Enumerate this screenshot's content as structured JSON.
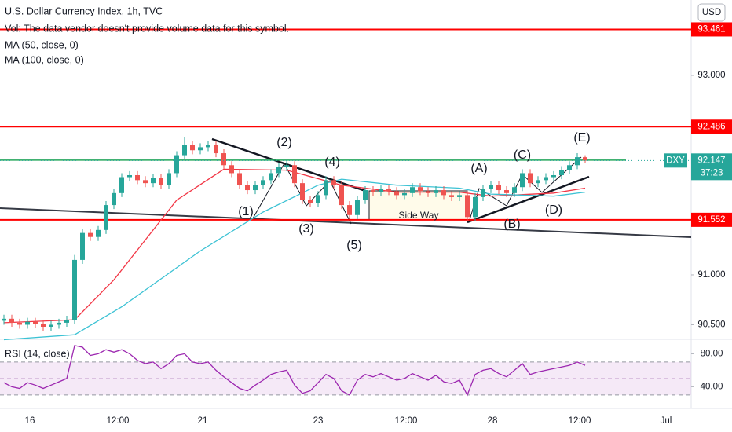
{
  "chart_data": {
    "type": "candlestick",
    "title": "U.S. Dollar Currency Index, 1h, TVC",
    "volume_note": "Vol: The data vendor doesn't provide volume data for this symbol.",
    "currency": "USD",
    "symbol": "DXY",
    "countdown": "37:23",
    "last_price": 92.147,
    "up_color": "#26a69a",
    "down_color": "#ef5350",
    "open": [
      90.54,
      90.56,
      90.52,
      90.5,
      90.53,
      90.51,
      90.48,
      90.5,
      90.52,
      90.55,
      91.15,
      91.42,
      91.38,
      91.45,
      91.7,
      91.82,
      91.98,
      92.0,
      91.95,
      91.92,
      91.97,
      91.9,
      92.02,
      92.2,
      92.3,
      92.25,
      92.28,
      92.3,
      92.22,
      92.1,
      92.02,
      91.9,
      91.85,
      91.9,
      91.95,
      92.02,
      92.08,
      92.1,
      91.92,
      91.75,
      91.72,
      91.8,
      91.95,
      91.9,
      91.7,
      91.6,
      91.75,
      91.85,
      91.83,
      91.86,
      91.84,
      91.8,
      91.82,
      91.88,
      91.84,
      91.82,
      91.85,
      91.8,
      91.78,
      91.8,
      91.58,
      91.78,
      91.86,
      91.9,
      91.85,
      91.82,
      91.88,
      92.02,
      91.92,
      91.95,
      91.98,
      92.0,
      92.05,
      92.1,
      92.18
    ],
    "high": [
      90.6,
      90.6,
      90.56,
      90.57,
      90.57,
      90.55,
      90.54,
      90.56,
      90.59,
      91.2,
      91.46,
      91.46,
      91.49,
      91.74,
      91.86,
      92.02,
      92.04,
      92.04,
      91.99,
      92.01,
      92.01,
      92.06,
      92.24,
      92.38,
      92.34,
      92.32,
      92.34,
      92.34,
      92.26,
      92.14,
      92.06,
      91.94,
      91.94,
      91.99,
      92.06,
      92.12,
      92.14,
      92.14,
      91.96,
      91.79,
      91.84,
      91.99,
      91.99,
      91.94,
      91.74,
      91.79,
      91.89,
      91.89,
      91.9,
      91.9,
      91.88,
      91.86,
      91.92,
      91.92,
      91.88,
      91.89,
      91.89,
      91.84,
      91.84,
      91.84,
      91.82,
      91.9,
      91.94,
      91.94,
      91.89,
      91.92,
      92.06,
      92.06,
      91.99,
      92.02,
      92.04,
      92.09,
      92.14,
      92.22,
      92.2
    ],
    "low": [
      90.5,
      90.48,
      90.46,
      90.46,
      90.47,
      90.44,
      90.44,
      90.46,
      90.48,
      90.51,
      91.11,
      91.34,
      91.34,
      91.41,
      91.66,
      91.78,
      91.94,
      91.91,
      91.88,
      91.88,
      91.86,
      91.86,
      91.98,
      92.16,
      92.21,
      92.21,
      92.24,
      92.18,
      92.06,
      91.98,
      91.86,
      91.81,
      91.81,
      91.86,
      91.91,
      91.98,
      92.04,
      91.88,
      91.71,
      91.68,
      91.68,
      91.76,
      91.86,
      91.66,
      91.56,
      91.56,
      91.71,
      91.79,
      91.79,
      91.8,
      91.76,
      91.76,
      91.78,
      91.8,
      91.78,
      91.78,
      91.76,
      91.74,
      91.74,
      91.54,
      91.54,
      91.74,
      91.82,
      91.81,
      91.78,
      91.78,
      91.84,
      91.88,
      91.88,
      91.91,
      91.94,
      91.96,
      92.01,
      92.06,
      92.12
    ],
    "close": [
      90.56,
      90.52,
      90.5,
      90.53,
      90.51,
      90.48,
      90.5,
      90.52,
      90.55,
      91.15,
      91.42,
      91.38,
      91.45,
      91.7,
      91.82,
      91.98,
      92.0,
      91.95,
      91.92,
      91.97,
      91.9,
      92.02,
      92.2,
      92.3,
      92.25,
      92.28,
      92.3,
      92.22,
      92.1,
      92.02,
      91.9,
      91.85,
      91.9,
      91.95,
      92.02,
      92.08,
      92.1,
      91.92,
      91.75,
      91.72,
      91.8,
      91.95,
      91.9,
      91.7,
      91.6,
      91.75,
      91.85,
      91.83,
      91.86,
      91.84,
      91.8,
      91.82,
      91.88,
      91.84,
      91.82,
      91.85,
      91.8,
      91.78,
      91.8,
      91.58,
      91.78,
      91.86,
      91.9,
      91.85,
      91.82,
      91.88,
      92.02,
      91.92,
      91.95,
      91.98,
      92.0,
      92.05,
      92.1,
      92.18,
      92.147
    ],
    "series": [
      {
        "name": "MA (50, close, 0)",
        "color": "#f23645",
        "x": [
          0,
          9,
          14,
          18,
          22,
          28,
          36,
          43,
          50,
          58,
          62,
          70,
          74
        ],
        "values": [
          90.52,
          90.55,
          90.95,
          91.35,
          91.75,
          92.06,
          92.05,
          91.9,
          91.83,
          91.83,
          91.79,
          91.82,
          91.87
        ]
      },
      {
        "name": "MA (100, close, 0)",
        "color": "#3cc2d4",
        "x": [
          0,
          9,
          15,
          25,
          33,
          40,
          43,
          50,
          58,
          62,
          70,
          74
        ],
        "values": [
          90.35,
          90.4,
          90.68,
          91.24,
          91.63,
          91.9,
          91.96,
          91.9,
          91.87,
          91.81,
          91.79,
          91.83
        ]
      }
    ],
    "xlim": [
      -0.5,
      87.5
    ],
    "xticks": [
      {
        "value": 3.3,
        "label": "16"
      },
      {
        "value": 14.5,
        "label": "12:00"
      },
      {
        "value": 25.3,
        "label": "21"
      },
      {
        "value": 40,
        "label": "23"
      },
      {
        "value": 51.2,
        "label": "12:00"
      },
      {
        "value": 62.2,
        "label": "28"
      },
      {
        "value": 73.3,
        "label": "12:00"
      },
      {
        "value": 84.3,
        "label": "Jul"
      }
    ],
    "ylim": [
      90.354,
      93.756
    ],
    "yticks": [
      {
        "value": 90.5,
        "label": "90.500"
      },
      {
        "value": 91,
        "label": "91.000"
      },
      {
        "value": 93,
        "label": "93.000"
      }
    ],
    "levels": [
      93.461,
      92.486,
      91.552
    ],
    "level_color": "#ff0000",
    "resistance": 92.15,
    "resistance_color": "#26a65b",
    "annotations": [
      {
        "text": "(1)",
        "color": "#26a69a"
      },
      {
        "text": "(2)",
        "color": "#26a69a"
      },
      {
        "text": "(3)",
        "color": "#26a69a"
      },
      {
        "text": "(4)",
        "color": "#26a69a"
      },
      {
        "text": "(5)",
        "color": "#26a69a"
      },
      {
        "text": "(A)",
        "color": "#131722"
      },
      {
        "text": "(B)",
        "color": "#131722"
      },
      {
        "text": "(C)",
        "color": "#131722"
      },
      {
        "text": "(D)",
        "color": "#131722"
      },
      {
        "text": "(E)",
        "color": "#131722"
      },
      {
        "text": "Side Way",
        "color": "#131722"
      }
    ],
    "rsi": {
      "name": "RSI (14, close)",
      "color": "#9c27b0",
      "values": [
        45,
        40,
        38,
        45,
        42,
        38,
        42,
        46,
        50,
        90,
        88,
        78,
        80,
        85,
        82,
        85,
        80,
        72,
        68,
        70,
        62,
        68,
        78,
        80,
        70,
        68,
        70,
        60,
        52,
        45,
        38,
        35,
        42,
        48,
        55,
        58,
        60,
        42,
        32,
        35,
        45,
        55,
        50,
        35,
        30,
        48,
        55,
        52,
        56,
        52,
        48,
        50,
        56,
        52,
        48,
        54,
        46,
        44,
        48,
        30,
        55,
        60,
        62,
        56,
        52,
        60,
        68,
        55,
        58,
        60,
        62,
        64,
        66,
        70,
        66
      ],
      "ylim": [
        13.7,
        96.6
      ],
      "yticks": [
        {
          "value": 80,
          "label": "80.00"
        },
        {
          "value": 40,
          "label": "40.00"
        }
      ],
      "band": [
        30,
        70
      ],
      "mid": 50
    }
  }
}
